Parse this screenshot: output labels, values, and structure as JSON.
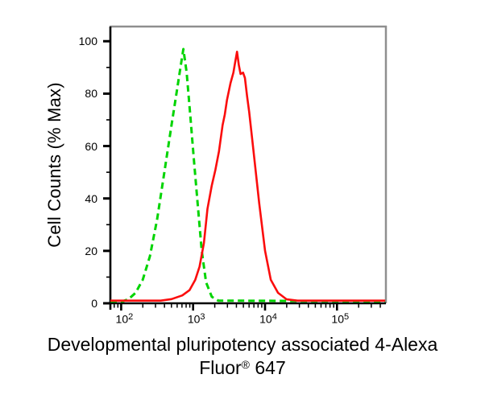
{
  "figure": {
    "background": "#ffffff",
    "border_color": "#8f8f8f",
    "axis_color": "#000000"
  },
  "chart_data": {
    "type": "line",
    "subtype": "flow-cytometry-histogram",
    "title": "",
    "ylabel": "Cell Counts (% Max)",
    "xlabel_line1": "Developmental pluripotency associated 4-Alexa",
    "xlabel_line2": {
      "base": "Fluor",
      "sup": "®",
      "rest": " 647"
    },
    "x_scale": "log10",
    "x_range_log10": [
      1.85,
      5.68
    ],
    "ylim": [
      0,
      105.6
    ],
    "grid": false,
    "legend": null,
    "y_major_ticks": [
      0,
      20,
      40,
      60,
      80,
      100
    ],
    "y_minor_ticks": [
      10,
      30,
      50,
      70,
      90
    ],
    "x_tick_base": "10",
    "x_decade_exponents": [
      2,
      3,
      4,
      5
    ],
    "series": [
      {
        "name": "green-dashed-curve",
        "style": "dashed",
        "color": "#00d400",
        "stroke_width": 3,
        "dash": "8 5",
        "points": [
          [
            1.85,
            0.8
          ],
          [
            2.02,
            0.8
          ],
          [
            2.1,
            1.5
          ],
          [
            2.2,
            4
          ],
          [
            2.3,
            9
          ],
          [
            2.4,
            18
          ],
          [
            2.5,
            32
          ],
          [
            2.6,
            50
          ],
          [
            2.7,
            68
          ],
          [
            2.78,
            82
          ],
          [
            2.83,
            91
          ],
          [
            2.865,
            97
          ],
          [
            2.91,
            88
          ],
          [
            2.96,
            72
          ],
          [
            3.01,
            55
          ],
          [
            3.07,
            36
          ],
          [
            3.12,
            20
          ],
          [
            3.18,
            8
          ],
          [
            3.26,
            2.5
          ],
          [
            3.35,
            1
          ],
          [
            5.67,
            0.8
          ]
        ]
      },
      {
        "name": "red-solid-curve",
        "style": "solid",
        "color": "#fb0d0d",
        "stroke_width": 2.6,
        "dash": "",
        "points": [
          [
            1.85,
            1
          ],
          [
            2.55,
            1
          ],
          [
            2.7,
            1.6
          ],
          [
            2.85,
            3
          ],
          [
            2.95,
            5
          ],
          [
            3.03,
            9
          ],
          [
            3.09,
            14
          ],
          [
            3.15,
            23
          ],
          [
            3.2,
            36
          ],
          [
            3.26,
            45
          ],
          [
            3.31,
            51
          ],
          [
            3.36,
            58
          ],
          [
            3.41,
            68
          ],
          [
            3.44,
            72
          ],
          [
            3.47,
            77.5
          ],
          [
            3.52,
            84
          ],
          [
            3.56,
            88
          ],
          [
            3.585,
            92
          ],
          [
            3.61,
            96
          ],
          [
            3.635,
            91
          ],
          [
            3.66,
            87.5
          ],
          [
            3.695,
            88
          ],
          [
            3.72,
            86
          ],
          [
            3.75,
            79
          ],
          [
            3.78,
            73
          ],
          [
            3.84,
            58
          ],
          [
            3.92,
            38
          ],
          [
            4.0,
            20
          ],
          [
            4.08,
            9
          ],
          [
            4.18,
            4
          ],
          [
            4.3,
            1.5
          ],
          [
            4.45,
            1
          ],
          [
            5.67,
            1
          ]
        ]
      }
    ]
  }
}
